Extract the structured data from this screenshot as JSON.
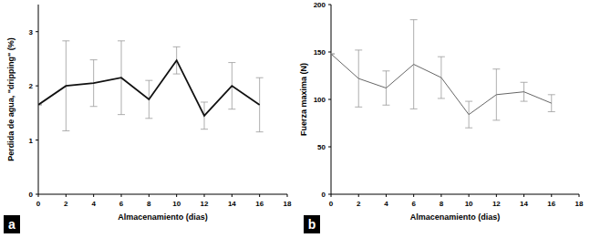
{
  "chart_data": [
    {
      "type": "line",
      "panel_label": "a",
      "x_label": "Almacenamiento (dias)",
      "y_label": "Perdida de agua, \"dripping\" (%)",
      "x": [
        0,
        2,
        4,
        6,
        8,
        10,
        12,
        14,
        16
      ],
      "values": [
        1.65,
        2.0,
        2.05,
        2.15,
        1.75,
        2.47,
        1.45,
        2.0,
        1.65
      ],
      "errors": [
        0,
        0.83,
        0.43,
        0.68,
        0.35,
        0.25,
        0.25,
        0.43,
        0.5
      ],
      "color": "#111111",
      "xlim": [
        0,
        18
      ],
      "xticks": [
        0,
        2,
        4,
        6,
        8,
        10,
        12,
        14,
        16,
        18
      ],
      "ylim": [
        0,
        3.5
      ],
      "yticks": [
        0,
        1,
        2,
        3
      ]
    },
    {
      "type": "line",
      "panel_label": "b",
      "x_label": "Almacenamiento (dias)",
      "y_label": "Fuerza maxima (N)",
      "x": [
        0,
        2,
        4,
        6,
        8,
        10,
        12,
        14,
        16
      ],
      "values": [
        148,
        122,
        112,
        137,
        123,
        84,
        105,
        108,
        96
      ],
      "errors": [
        0,
        30,
        18,
        47,
        22,
        14,
        27,
        10,
        9
      ],
      "color": "#666666",
      "xlim": [
        0,
        18
      ],
      "xticks": [
        0,
        2,
        4,
        6,
        8,
        10,
        12,
        14,
        16,
        18
      ],
      "ylim": [
        0,
        200
      ],
      "yticks": [
        0,
        50,
        100,
        150,
        200
      ]
    }
  ]
}
